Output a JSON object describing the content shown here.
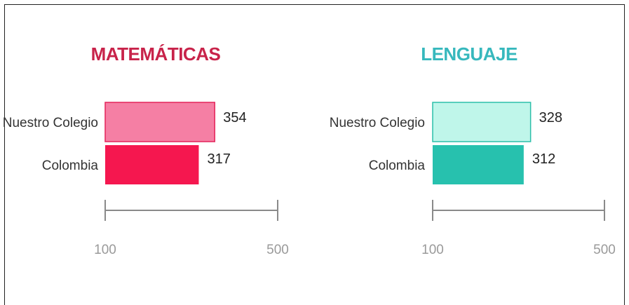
{
  "chart_data": [
    {
      "type": "bar",
      "orientation": "horizontal",
      "title": "MATEMÁTICAS",
      "title_color": "#c8234a",
      "categories": [
        "Nuestro Colegio",
        "Colombia"
      ],
      "values": [
        354,
        317
      ],
      "value_labels": [
        "354",
        "317"
      ],
      "bar_colors": [
        "#f57fa4",
        "#f5174f"
      ],
      "bar_stroke": "#e4245a",
      "xlim": [
        100,
        500
      ],
      "x_ticks": [
        "100",
        "500"
      ],
      "axis_color": "#8a8a8a",
      "grid": false
    },
    {
      "type": "bar",
      "orientation": "horizontal",
      "title": "LENGUAJE",
      "title_color": "#37b8bd",
      "categories": [
        "Nuestro Colegio",
        "Colombia"
      ],
      "values": [
        328,
        312
      ],
      "value_labels": [
        "328",
        "312"
      ],
      "bar_colors": [
        "#bff6ea",
        "#27c1ae"
      ],
      "bar_stroke": "#2cbfa9",
      "xlim": [
        100,
        500
      ],
      "x_ticks": [
        "100",
        "500"
      ],
      "axis_color": "#8a8a8a",
      "grid": false
    }
  ]
}
